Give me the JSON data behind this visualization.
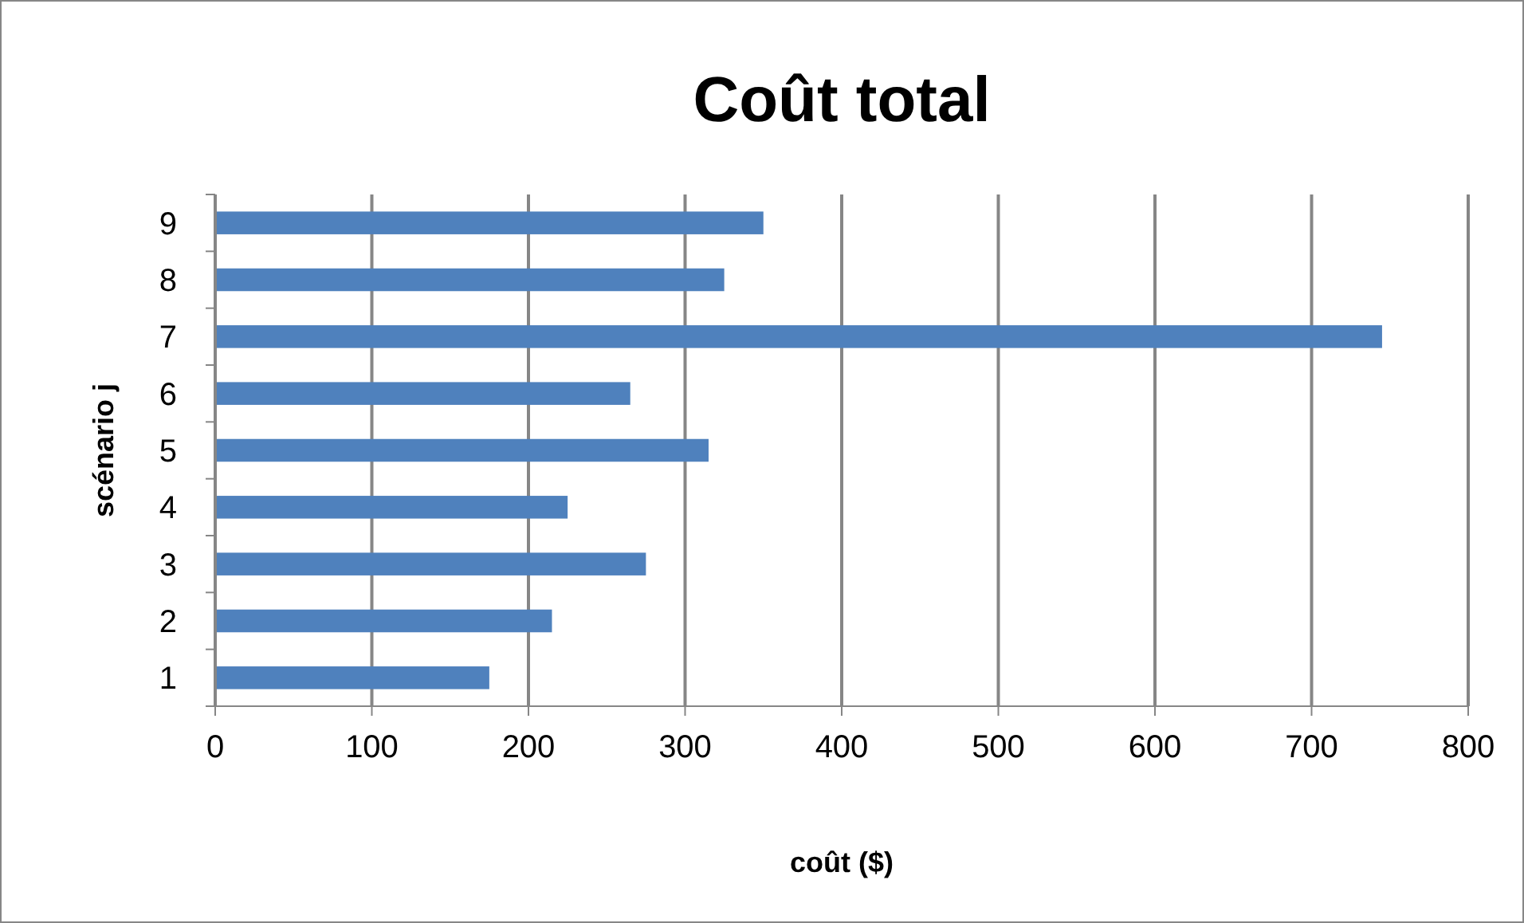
{
  "chart_data": {
    "type": "bar",
    "orientation": "horizontal",
    "title": "Coût total",
    "xlabel": "coût ($)",
    "ylabel": "scénario j",
    "categories": [
      "9",
      "8",
      "7",
      "6",
      "5",
      "4",
      "3",
      "2",
      "1"
    ],
    "values": [
      350,
      325,
      745,
      265,
      315,
      225,
      275,
      215,
      175
    ],
    "color": "#4f81bd",
    "xlim": [
      0,
      800
    ],
    "xticks": [
      0,
      100,
      200,
      300,
      400,
      500,
      600,
      700,
      800
    ],
    "grid": "x"
  }
}
